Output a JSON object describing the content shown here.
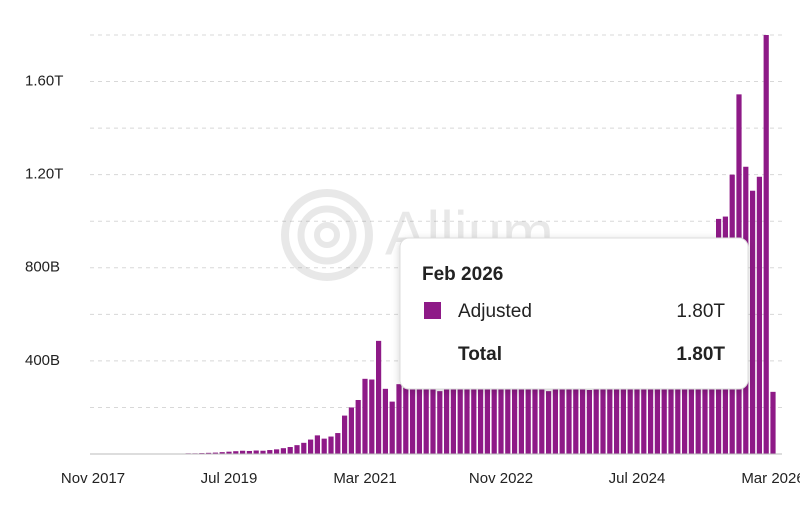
{
  "chart_data": {
    "type": "bar",
    "categories": [
      "Nov 2017",
      null,
      null,
      null,
      null,
      null,
      null,
      null,
      null,
      null,
      null,
      null,
      null,
      null,
      null,
      null,
      null,
      null,
      null,
      null,
      "Jul 2019",
      null,
      null,
      null,
      null,
      null,
      null,
      null,
      null,
      null,
      null,
      null,
      null,
      null,
      null,
      null,
      null,
      null,
      null,
      null,
      "Mar 2021",
      null,
      null,
      null,
      null,
      null,
      null,
      null,
      null,
      null,
      null,
      null,
      null,
      null,
      null,
      null,
      null,
      null,
      null,
      null,
      "Nov 2022",
      null,
      null,
      null,
      null,
      null,
      null,
      null,
      null,
      null,
      null,
      null,
      null,
      null,
      null,
      null,
      null,
      null,
      null,
      null,
      "Jul 2024",
      null,
      null,
      null,
      null,
      null,
      null,
      null,
      null,
      null,
      null,
      null,
      null,
      null,
      null,
      null,
      null,
      null,
      null,
      null,
      "Mar 2026"
    ],
    "series": [
      {
        "name": "Adjusted",
        "color": "#8e1a87",
        "values": [
          1,
          1,
          1,
          1,
          1,
          1,
          1,
          1,
          1,
          2,
          2,
          2,
          2,
          2,
          3,
          3,
          4,
          5,
          6,
          8,
          10,
          12,
          14,
          13,
          15,
          14,
          17,
          20,
          25,
          30,
          38,
          48,
          62,
          80,
          66,
          75,
          90,
          165,
          200,
          232,
          323,
          320,
          486,
          280,
          225,
          300,
          290,
          280,
          300,
          310,
          285,
          270,
          280,
          295,
          300,
          290,
          285,
          300,
          310,
          290,
          280,
          295,
          300,
          305,
          290,
          285,
          280,
          270,
          285,
          290,
          295,
          300,
          280,
          275,
          285,
          290,
          300,
          310,
          305,
          300,
          320,
          330,
          340,
          350,
          360,
          380,
          400,
          430,
          460,
          500,
          560,
          620,
          1010,
          1020,
          1200,
          1545,
          1234,
          1131,
          1191,
          1800,
          267
        ]
      }
    ],
    "ylim": [
      0,
      1800
    ],
    "yticks": [
      {
        "value": 400,
        "label": "400B"
      },
      {
        "value": 800,
        "label": "800B"
      },
      {
        "value": 1200,
        "label": "1.20T"
      },
      {
        "value": 1600,
        "label": "1.60T"
      }
    ],
    "grid_lines": [
      200,
      400,
      600,
      800,
      1000,
      1200,
      1400,
      1600,
      1800
    ],
    "watermark": "Allium",
    "tooltip": {
      "title": "Feb 2026",
      "series_label": "Adjusted",
      "series_value": "1.80T",
      "total_label": "Total",
      "total_value": "1.80T"
    }
  }
}
